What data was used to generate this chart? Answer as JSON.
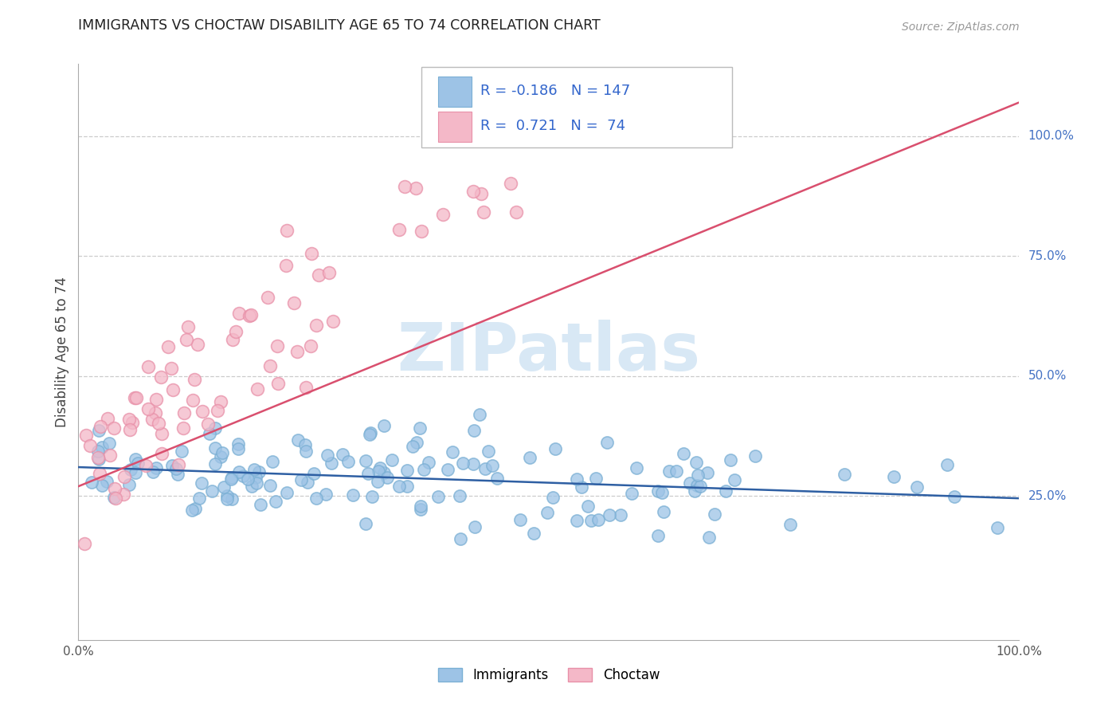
{
  "title": "IMMIGRANTS VS CHOCTAW DISABILITY AGE 65 TO 74 CORRELATION CHART",
  "source": "Source: ZipAtlas.com",
  "ylabel": "Disability Age 65 to 74",
  "xlim": [
    0.0,
    1.0
  ],
  "ylim": [
    -0.05,
    1.15
  ],
  "immigrants_color": "#9dc3e6",
  "immigrants_edge_color": "#7aafd4",
  "choctaw_color": "#f4b8c8",
  "choctaw_edge_color": "#e890a8",
  "immigrants_line_color": "#2e5fa3",
  "choctaw_line_color": "#d94f6e",
  "watermark_text": "ZIPatlas",
  "watermark_color": "#d8e8f5",
  "background_color": "#ffffff",
  "grid_color": "#cccccc",
  "right_axis_color": "#4472c4",
  "immigrants_R": -0.186,
  "immigrants_N": 147,
  "choctaw_R": 0.721,
  "choctaw_N": 74,
  "immigrants_line_x": [
    0.0,
    1.0
  ],
  "immigrants_line_y": [
    0.31,
    0.245
  ],
  "choctaw_line_x": [
    0.0,
    1.0
  ],
  "choctaw_line_y": [
    0.27,
    1.07
  ]
}
